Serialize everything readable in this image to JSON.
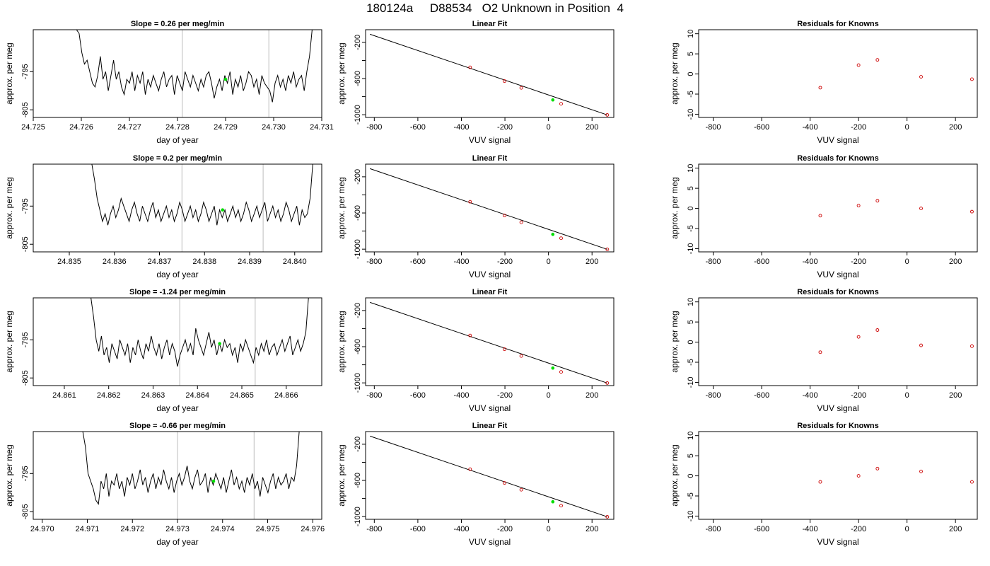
{
  "figure": {
    "title": "180124a     D88534   O2 Unknown in Position  4"
  },
  "style": {
    "trace_color": "#000000",
    "marker_color": "#00dd00",
    "point_color": "#cc0000",
    "guide_color": "#c8c8c8"
  },
  "chart_data": [
    {
      "type": "line",
      "title": "Slope =  0.26  per meg/min",
      "xlabel": "day of year",
      "ylabel": "approx. per meg",
      "xlim": [
        24.725,
        24.731
      ],
      "ylim": [
        -807,
        -784
      ],
      "xticks": [
        24.725,
        24.726,
        24.727,
        24.728,
        24.729,
        24.73,
        24.731
      ],
      "xtick_labels": [
        "24.725",
        "24.726",
        "24.727",
        "24.728",
        "24.729",
        "24.730",
        "24.731"
      ],
      "yticks": [
        -795,
        -805
      ],
      "ytick_labels": [
        "-795",
        "-805"
      ],
      "series": [
        {
          "x0": 24.7259,
          "x1": 24.7308,
          "values": [
            -784,
            -785,
            -790,
            -793,
            -792,
            -795,
            -798,
            -799,
            -796,
            -791,
            -797,
            -795,
            -800,
            -796,
            -792,
            -797,
            -795,
            -799,
            -801,
            -797,
            -798,
            -795,
            -800,
            -796,
            -798,
            -795,
            -801,
            -797,
            -799,
            -796,
            -798,
            -800,
            -797,
            -795,
            -799,
            -797,
            -796,
            -801,
            -796,
            -798,
            -800,
            -795,
            -797,
            -799,
            -796,
            -798,
            -800,
            -797,
            -799,
            -796,
            -795,
            -798,
            -802,
            -799,
            -797,
            -800,
            -796,
            -798,
            -795,
            -801,
            -797,
            -799,
            -796,
            -800,
            -798,
            -795,
            -796,
            -799,
            -797,
            -801,
            -796,
            -798,
            -799,
            -800,
            -803,
            -798,
            -796,
            -799,
            -797,
            -800,
            -796,
            -798,
            -795,
            -799,
            -797,
            -796,
            -800,
            -795,
            -791,
            -784
          ]
        }
      ],
      "guides": [
        24.7281,
        24.7299
      ],
      "marker": {
        "x": 24.729,
        "y": -797
      }
    },
    {
      "type": "scatter",
      "title": "Linear Fit",
      "xlabel": "VUV signal",
      "ylabel": "approx. per meg",
      "xlim": [
        -840,
        300
      ],
      "ylim": [
        -1030,
        -60
      ],
      "xticks": [
        -800,
        -600,
        -400,
        -200,
        0,
        200
      ],
      "xtick_labels": [
        "-800",
        "-600",
        "-400",
        "-200",
        "0",
        "200"
      ],
      "yticks": [
        -200,
        -600,
        -1000
      ],
      "ytick_labels": [
        "-200",
        "-600",
        "-1000"
      ],
      "minor_yticks": [
        -400,
        -800
      ],
      "points": [
        {
          "x": -360,
          "y": -476
        },
        {
          "x": -202,
          "y": -628
        },
        {
          "x": -125,
          "y": -703
        },
        {
          "x": 58,
          "y": -879
        },
        {
          "x": 270,
          "y": -1002
        }
      ],
      "fit_line": {
        "x0": -820,
        "y0": -110,
        "x1": 270,
        "y1": -1002
      },
      "marker": {
        "x": 20,
        "y": -836
      }
    },
    {
      "type": "scatter",
      "title": "Residuals for Knowns",
      "xlabel": "VUV signal",
      "ylabel": "approx. per meg",
      "xlim": [
        -860,
        290
      ],
      "ylim": [
        -10.8,
        11
      ],
      "xticks": [
        -800,
        -600,
        -400,
        -200,
        0,
        200
      ],
      "xtick_labels": [
        "-800",
        "-600",
        "-400",
        "-200",
        "0",
        "200"
      ],
      "yticks": [
        10,
        5,
        0,
        -5,
        -10
      ],
      "ytick_labels": [
        "10",
        "5",
        "0",
        "-5",
        "-10"
      ],
      "points": [
        {
          "x": -358,
          "y": -3.4
        },
        {
          "x": -200,
          "y": 2.2
        },
        {
          "x": -122,
          "y": 3.5
        },
        {
          "x": 58,
          "y": -0.7
        },
        {
          "x": 268,
          "y": -1.3
        }
      ]
    },
    {
      "type": "line",
      "title": "Slope =  0.2  per meg/min",
      "xlabel": "day of year",
      "ylabel": "approx. per meg",
      "xlim": [
        24.8342,
        24.8406
      ],
      "ylim": [
        -807,
        -784
      ],
      "xticks": [
        24.835,
        24.836,
        24.837,
        24.838,
        24.839,
        24.84
      ],
      "xtick_labels": [
        "24.835",
        "24.836",
        "24.837",
        "24.838",
        "24.839",
        "24.840"
      ],
      "yticks": [
        -795,
        -805
      ],
      "ytick_labels": [
        "-795",
        "-805"
      ],
      "series": [
        {
          "x0": 24.8355,
          "x1": 24.8404,
          "values": [
            -784,
            -788,
            -793,
            -796,
            -799,
            -797,
            -800,
            -797,
            -795,
            -798,
            -796,
            -793,
            -795,
            -797,
            -799,
            -796,
            -794,
            -797,
            -799,
            -795,
            -797,
            -799,
            -796,
            -794,
            -798,
            -796,
            -799,
            -797,
            -795,
            -798,
            -796,
            -799,
            -797,
            -794,
            -796,
            -799,
            -797,
            -795,
            -798,
            -796,
            -799,
            -797,
            -794,
            -796,
            -799,
            -797,
            -795,
            -800,
            -796,
            -798,
            -796,
            -799,
            -797,
            -795,
            -798,
            -796,
            -799,
            -797,
            -794,
            -796,
            -799,
            -797,
            -795,
            -798,
            -796,
            -794,
            -799,
            -797,
            -795,
            -798,
            -796,
            -799,
            -797,
            -794,
            -796,
            -799,
            -797,
            -795,
            -800,
            -796,
            -798,
            -797,
            -793,
            -784
          ]
        }
      ],
      "guides": [
        24.8375,
        24.8393
      ],
      "marker": {
        "x": 24.8384,
        "y": -796
      }
    },
    {
      "type": "scatter",
      "title": "Linear Fit",
      "xlabel": "VUV signal",
      "ylabel": "approx. per meg",
      "xlim": [
        -840,
        300
      ],
      "ylim": [
        -1030,
        -60
      ],
      "xticks": [
        -800,
        -600,
        -400,
        -200,
        0,
        200
      ],
      "xtick_labels": [
        "-800",
        "-600",
        "-400",
        "-200",
        "0",
        "200"
      ],
      "yticks": [
        -200,
        -600,
        -1000
      ],
      "ytick_labels": [
        "-200",
        "-600",
        "-1000"
      ],
      "minor_yticks": [
        -400,
        -800
      ],
      "points": [
        {
          "x": -360,
          "y": -476
        },
        {
          "x": -202,
          "y": -628
        },
        {
          "x": -125,
          "y": -703
        },
        {
          "x": 58,
          "y": -879
        },
        {
          "x": 270,
          "y": -1002
        }
      ],
      "fit_line": {
        "x0": -820,
        "y0": -110,
        "x1": 270,
        "y1": -1002
      },
      "marker": {
        "x": 20,
        "y": -836
      }
    },
    {
      "type": "scatter",
      "title": "Residuals for Knowns",
      "xlabel": "VUV signal",
      "ylabel": "approx. per meg",
      "xlim": [
        -860,
        290
      ],
      "ylim": [
        -10.8,
        11
      ],
      "xticks": [
        -800,
        -600,
        -400,
        -200,
        0,
        200
      ],
      "xtick_labels": [
        "-800",
        "-600",
        "-400",
        "-200",
        "0",
        "200"
      ],
      "yticks": [
        10,
        5,
        0,
        -5,
        -10
      ],
      "ytick_labels": [
        "10",
        "5",
        "0",
        "-5",
        "-10"
      ],
      "points": [
        {
          "x": -358,
          "y": -1.8
        },
        {
          "x": -200,
          "y": 0.7
        },
        {
          "x": -122,
          "y": 1.9
        },
        {
          "x": 58,
          "y": 0.0
        },
        {
          "x": 268,
          "y": -0.8
        }
      ]
    },
    {
      "type": "line",
      "title": "Slope =  -1.24  per meg/min",
      "xlabel": "day of year",
      "ylabel": "approx. per meg",
      "xlim": [
        24.8603,
        24.8668
      ],
      "ylim": [
        -807,
        -784
      ],
      "xticks": [
        24.861,
        24.862,
        24.863,
        24.864,
        24.865,
        24.866
      ],
      "xtick_labels": [
        "24.861",
        "24.862",
        "24.863",
        "24.864",
        "24.865",
        "24.866"
      ],
      "yticks": [
        -795,
        -805
      ],
      "ytick_labels": [
        "-795",
        "-805"
      ],
      "series": [
        {
          "x0": 24.8616,
          "x1": 24.8665,
          "values": [
            -784,
            -789,
            -795,
            -798,
            -794,
            -799,
            -797,
            -801,
            -796,
            -798,
            -800,
            -795,
            -797,
            -799,
            -796,
            -801,
            -797,
            -799,
            -795,
            -798,
            -800,
            -796,
            -798,
            -794,
            -797,
            -799,
            -796,
            -800,
            -797,
            -795,
            -799,
            -796,
            -798,
            -802,
            -799,
            -797,
            -795,
            -798,
            -796,
            -799,
            -792,
            -795,
            -797,
            -799,
            -796,
            -793,
            -797,
            -795,
            -799,
            -796,
            -798,
            -795,
            -797,
            -796,
            -799,
            -797,
            -801,
            -796,
            -798,
            -795,
            -797,
            -799,
            -801,
            -797,
            -799,
            -796,
            -798,
            -795,
            -799,
            -797,
            -796,
            -799,
            -797,
            -795,
            -798,
            -796,
            -794,
            -799,
            -797,
            -795,
            -798,
            -796,
            -793,
            -784
          ]
        }
      ],
      "guides": [
        24.8636,
        24.8653
      ],
      "marker": {
        "x": 24.8645,
        "y": -796
      }
    },
    {
      "type": "scatter",
      "title": "Linear Fit",
      "xlabel": "VUV signal",
      "ylabel": "approx. per meg",
      "xlim": [
        -840,
        300
      ],
      "ylim": [
        -1030,
        -60
      ],
      "xticks": [
        -800,
        -600,
        -400,
        -200,
        0,
        200
      ],
      "xtick_labels": [
        "-800",
        "-600",
        "-400",
        "-200",
        "0",
        "200"
      ],
      "yticks": [
        -200,
        -600,
        -1000
      ],
      "ytick_labels": [
        "-200",
        "-600",
        "-1000"
      ],
      "minor_yticks": [
        -400,
        -800
      ],
      "points": [
        {
          "x": -360,
          "y": -476
        },
        {
          "x": -202,
          "y": -628
        },
        {
          "x": -125,
          "y": -703
        },
        {
          "x": 58,
          "y": -879
        },
        {
          "x": 270,
          "y": -1002
        }
      ],
      "fit_line": {
        "x0": -820,
        "y0": -110,
        "x1": 270,
        "y1": -1002
      },
      "marker": {
        "x": 20,
        "y": -836
      }
    },
    {
      "type": "scatter",
      "title": "Residuals for Knowns",
      "xlabel": "VUV signal",
      "ylabel": "approx. per meg",
      "xlim": [
        -860,
        290
      ],
      "ylim": [
        -10.8,
        11
      ],
      "xticks": [
        -800,
        -600,
        -400,
        -200,
        0,
        200
      ],
      "xtick_labels": [
        "-800",
        "-600",
        "-400",
        "-200",
        "0",
        "200"
      ],
      "yticks": [
        10,
        5,
        0,
        -5,
        -10
      ],
      "ytick_labels": [
        "10",
        "5",
        "0",
        "-5",
        "-10"
      ],
      "points": [
        {
          "x": -358,
          "y": -2.5
        },
        {
          "x": -200,
          "y": 1.3
        },
        {
          "x": -122,
          "y": 3.0
        },
        {
          "x": 58,
          "y": -0.8
        },
        {
          "x": 268,
          "y": -1.0
        }
      ]
    },
    {
      "type": "line",
      "title": "Slope =  -0.66  per meg/min",
      "xlabel": "day of year",
      "ylabel": "approx. per meg",
      "xlim": [
        24.9698,
        24.9762
      ],
      "ylim": [
        -807,
        -784
      ],
      "xticks": [
        24.97,
        24.971,
        24.972,
        24.973,
        24.974,
        24.975,
        24.976
      ],
      "xtick_labels": [
        "24.970",
        "24.971",
        "24.972",
        "24.973",
        "24.974",
        "24.975",
        "24.976"
      ],
      "yticks": [
        -795,
        -805
      ],
      "ytick_labels": [
        "-795",
        "-805"
      ],
      "series": [
        {
          "x0": 24.9709,
          "x1": 24.9757,
          "values": [
            -784,
            -788,
            -795,
            -797,
            -799,
            -802,
            -803,
            -797,
            -799,
            -795,
            -801,
            -797,
            -798,
            -795,
            -799,
            -797,
            -801,
            -796,
            -798,
            -795,
            -799,
            -797,
            -794,
            -798,
            -796,
            -800,
            -797,
            -795,
            -799,
            -796,
            -798,
            -794,
            -797,
            -799,
            -796,
            -800,
            -797,
            -795,
            -798,
            -796,
            -793,
            -797,
            -799,
            -796,
            -794,
            -798,
            -797,
            -795,
            -800,
            -796,
            -798,
            -795,
            -797,
            -799,
            -796,
            -800,
            -797,
            -794,
            -798,
            -796,
            -799,
            -797,
            -800,
            -796,
            -798,
            -795,
            -799,
            -797,
            -801,
            -796,
            -798,
            -800,
            -797,
            -795,
            -799,
            -796,
            -798,
            -797,
            -795,
            -799,
            -796,
            -797,
            -793,
            -784
          ]
        }
      ],
      "guides": [
        24.973,
        24.9747
      ],
      "marker": {
        "x": 24.9738,
        "y": -797
      }
    },
    {
      "type": "scatter",
      "title": "Linear Fit",
      "xlabel": "VUV signal",
      "ylabel": "approx. per meg",
      "xlim": [
        -840,
        300
      ],
      "ylim": [
        -1030,
        -60
      ],
      "xticks": [
        -800,
        -600,
        -400,
        -200,
        0,
        200
      ],
      "xtick_labels": [
        "-800",
        "-600",
        "-400",
        "-200",
        "0",
        "200"
      ],
      "yticks": [
        -200,
        -600,
        -1000
      ],
      "ytick_labels": [
        "-200",
        "-600",
        "-1000"
      ],
      "minor_yticks": [
        -400,
        -800
      ],
      "points": [
        {
          "x": -360,
          "y": -476
        },
        {
          "x": -202,
          "y": -628
        },
        {
          "x": -125,
          "y": -703
        },
        {
          "x": 58,
          "y": -879
        },
        {
          "x": 270,
          "y": -1002
        }
      ],
      "fit_line": {
        "x0": -820,
        "y0": -110,
        "x1": 270,
        "y1": -1002
      },
      "marker": {
        "x": 20,
        "y": -836
      }
    },
    {
      "type": "scatter",
      "title": "Residuals for Knowns",
      "xlabel": "VUV signal",
      "ylabel": "approx. per meg",
      "xlim": [
        -860,
        290
      ],
      "ylim": [
        -10.8,
        11
      ],
      "xticks": [
        -800,
        -600,
        -400,
        -200,
        0,
        200
      ],
      "xtick_labels": [
        "-800",
        "-600",
        "-400",
        "-200",
        "0",
        "200"
      ],
      "yticks": [
        10,
        5,
        0,
        -5,
        -10
      ],
      "ytick_labels": [
        "10",
        "5",
        "0",
        "-5",
        "-10"
      ],
      "points": [
        {
          "x": -358,
          "y": -1.5
        },
        {
          "x": -200,
          "y": 0.0
        },
        {
          "x": -122,
          "y": 1.8
        },
        {
          "x": 58,
          "y": 1.1
        },
        {
          "x": 268,
          "y": -1.5
        }
      ]
    }
  ]
}
